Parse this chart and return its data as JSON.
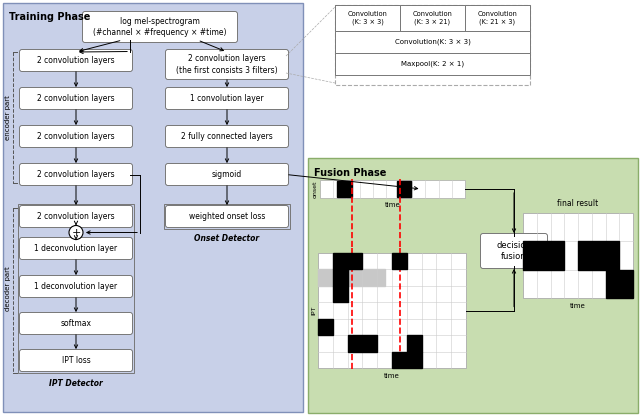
{
  "training_bg": "#c8d0e8",
  "fusion_bg": "#c8ddb0",
  "training_border": "#8090b8",
  "fusion_border": "#8aad6a",
  "box_bg": "#ffffff",
  "box_border": "#888888",
  "input_box": "log mel-spectrogram\n(#channel × #frequency × #time)",
  "left_labels": [
    "2 convolution layers",
    "2 convolution layers",
    "2 convolution layers",
    "2 convolution layers",
    "2 convolution layers",
    "1 deconvolution layer",
    "1 deconvolution layer",
    "softmax",
    "IPT loss"
  ],
  "right_labels": [
    "2 convolution layers\n(the first consists 3 filters)",
    "1 convolution layer",
    "2 fully connected layers",
    "sigmoid",
    "weighted onset loss"
  ],
  "conv_top": [
    "Convolution\n(K: 3 × 3)",
    "Convolution\n(K: 3 × 21)",
    "Convolution\n(K: 21 × 3)"
  ],
  "conv_mid": "Convolution(K: 3 × 3)",
  "conv_bot": "Maxpool(K: 2 × 1)",
  "fusion_phase_title": "Fusion Phase",
  "decision_fusion": "decision\nfusion",
  "final_result": "final result",
  "onset_detector_label": "Onset Detector",
  "ipt_detector_label": "IPT Detector",
  "encoder_label": "encoder part",
  "decoder_label": "decoder part"
}
